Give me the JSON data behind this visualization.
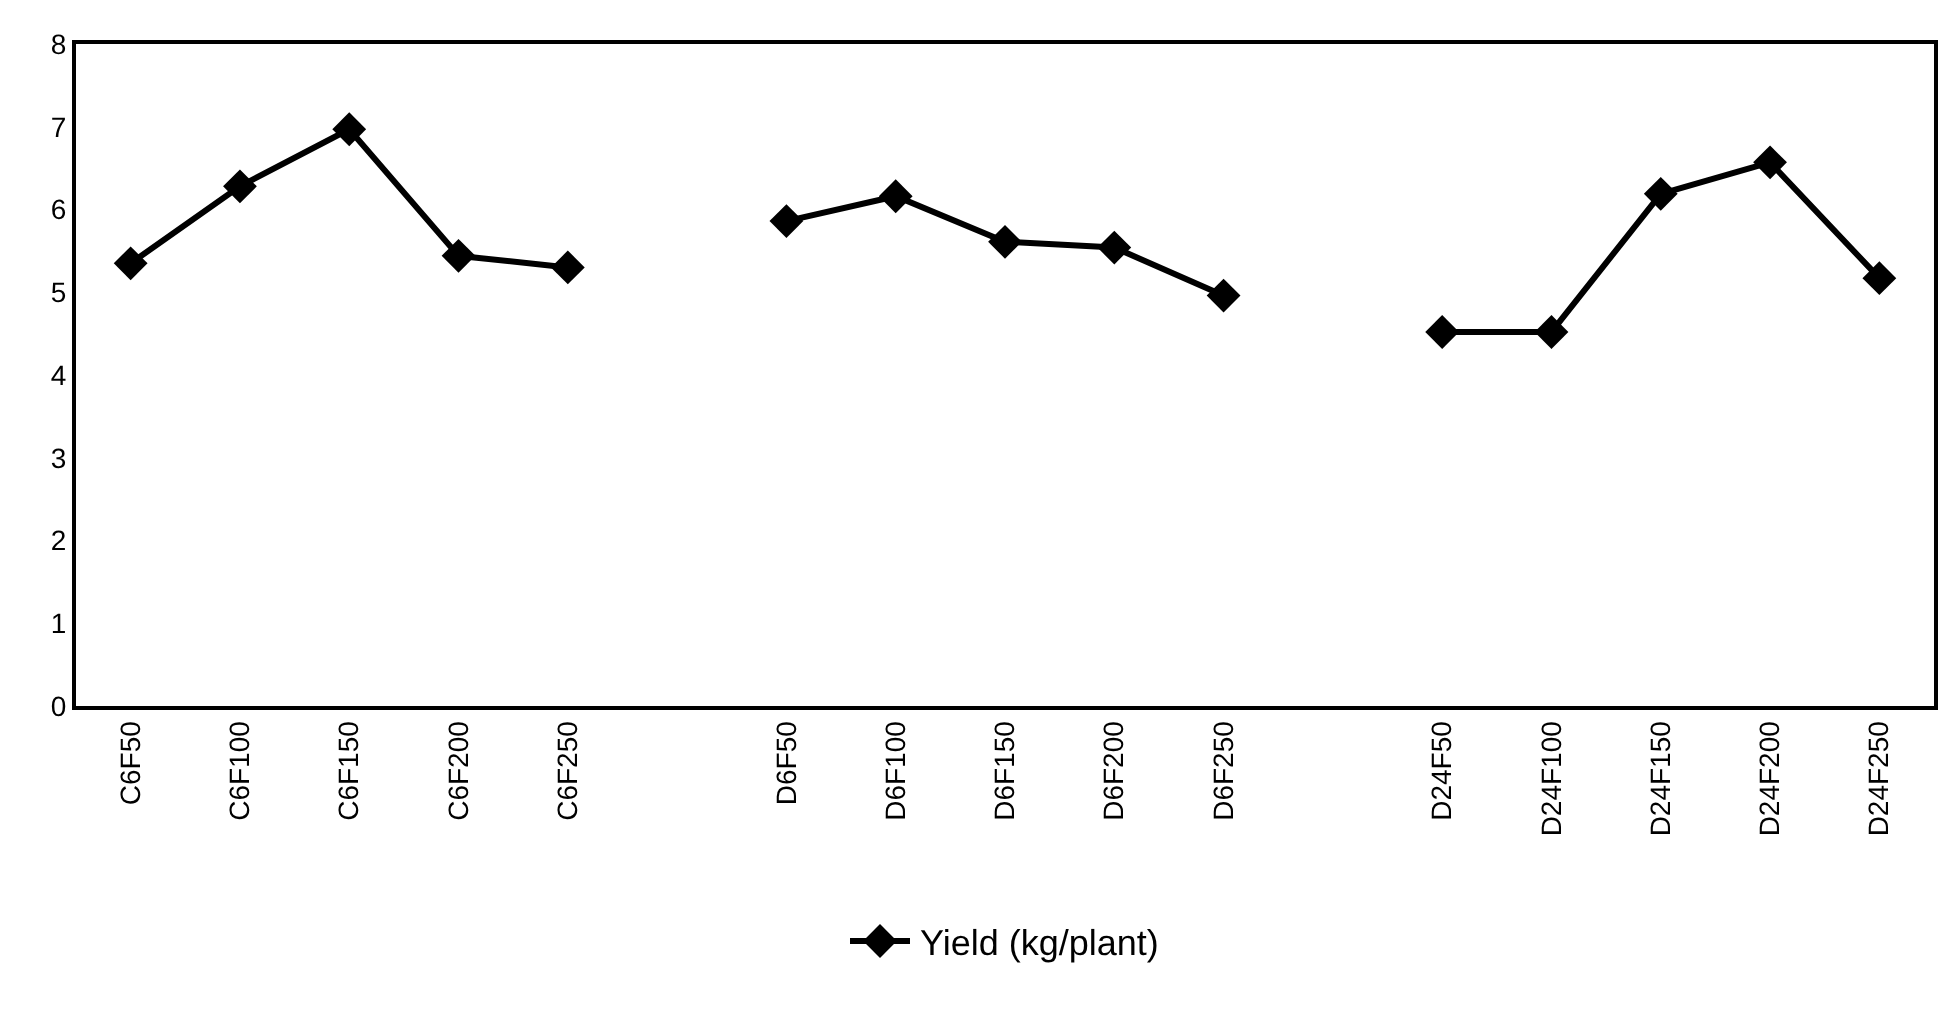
{
  "chart_data": {
    "type": "line",
    "categories": [
      "C6F50",
      "C6F100",
      "C6F150",
      "C6F200",
      "C6F250",
      null,
      "D6F50",
      "D6F100",
      "D6F150",
      "D6F200",
      "D6F250",
      null,
      "D24F50",
      "D24F100",
      "D24F150",
      "D24F200",
      "D24F250"
    ],
    "series": [
      {
        "name": "Yield (kg/plant)",
        "color": "#000000",
        "values": [
          5.35,
          6.28,
          6.97,
          5.44,
          5.3,
          null,
          5.86,
          6.16,
          5.61,
          5.54,
          4.96,
          null,
          4.52,
          4.52,
          6.19,
          6.57,
          5.17
        ]
      }
    ],
    "ylim": [
      0,
      8
    ],
    "yticks": [
      0,
      1,
      2,
      3,
      4,
      5,
      6,
      7,
      8
    ],
    "grid": false,
    "legend": "bottom",
    "marker": "diamond",
    "line_style": "solid"
  }
}
